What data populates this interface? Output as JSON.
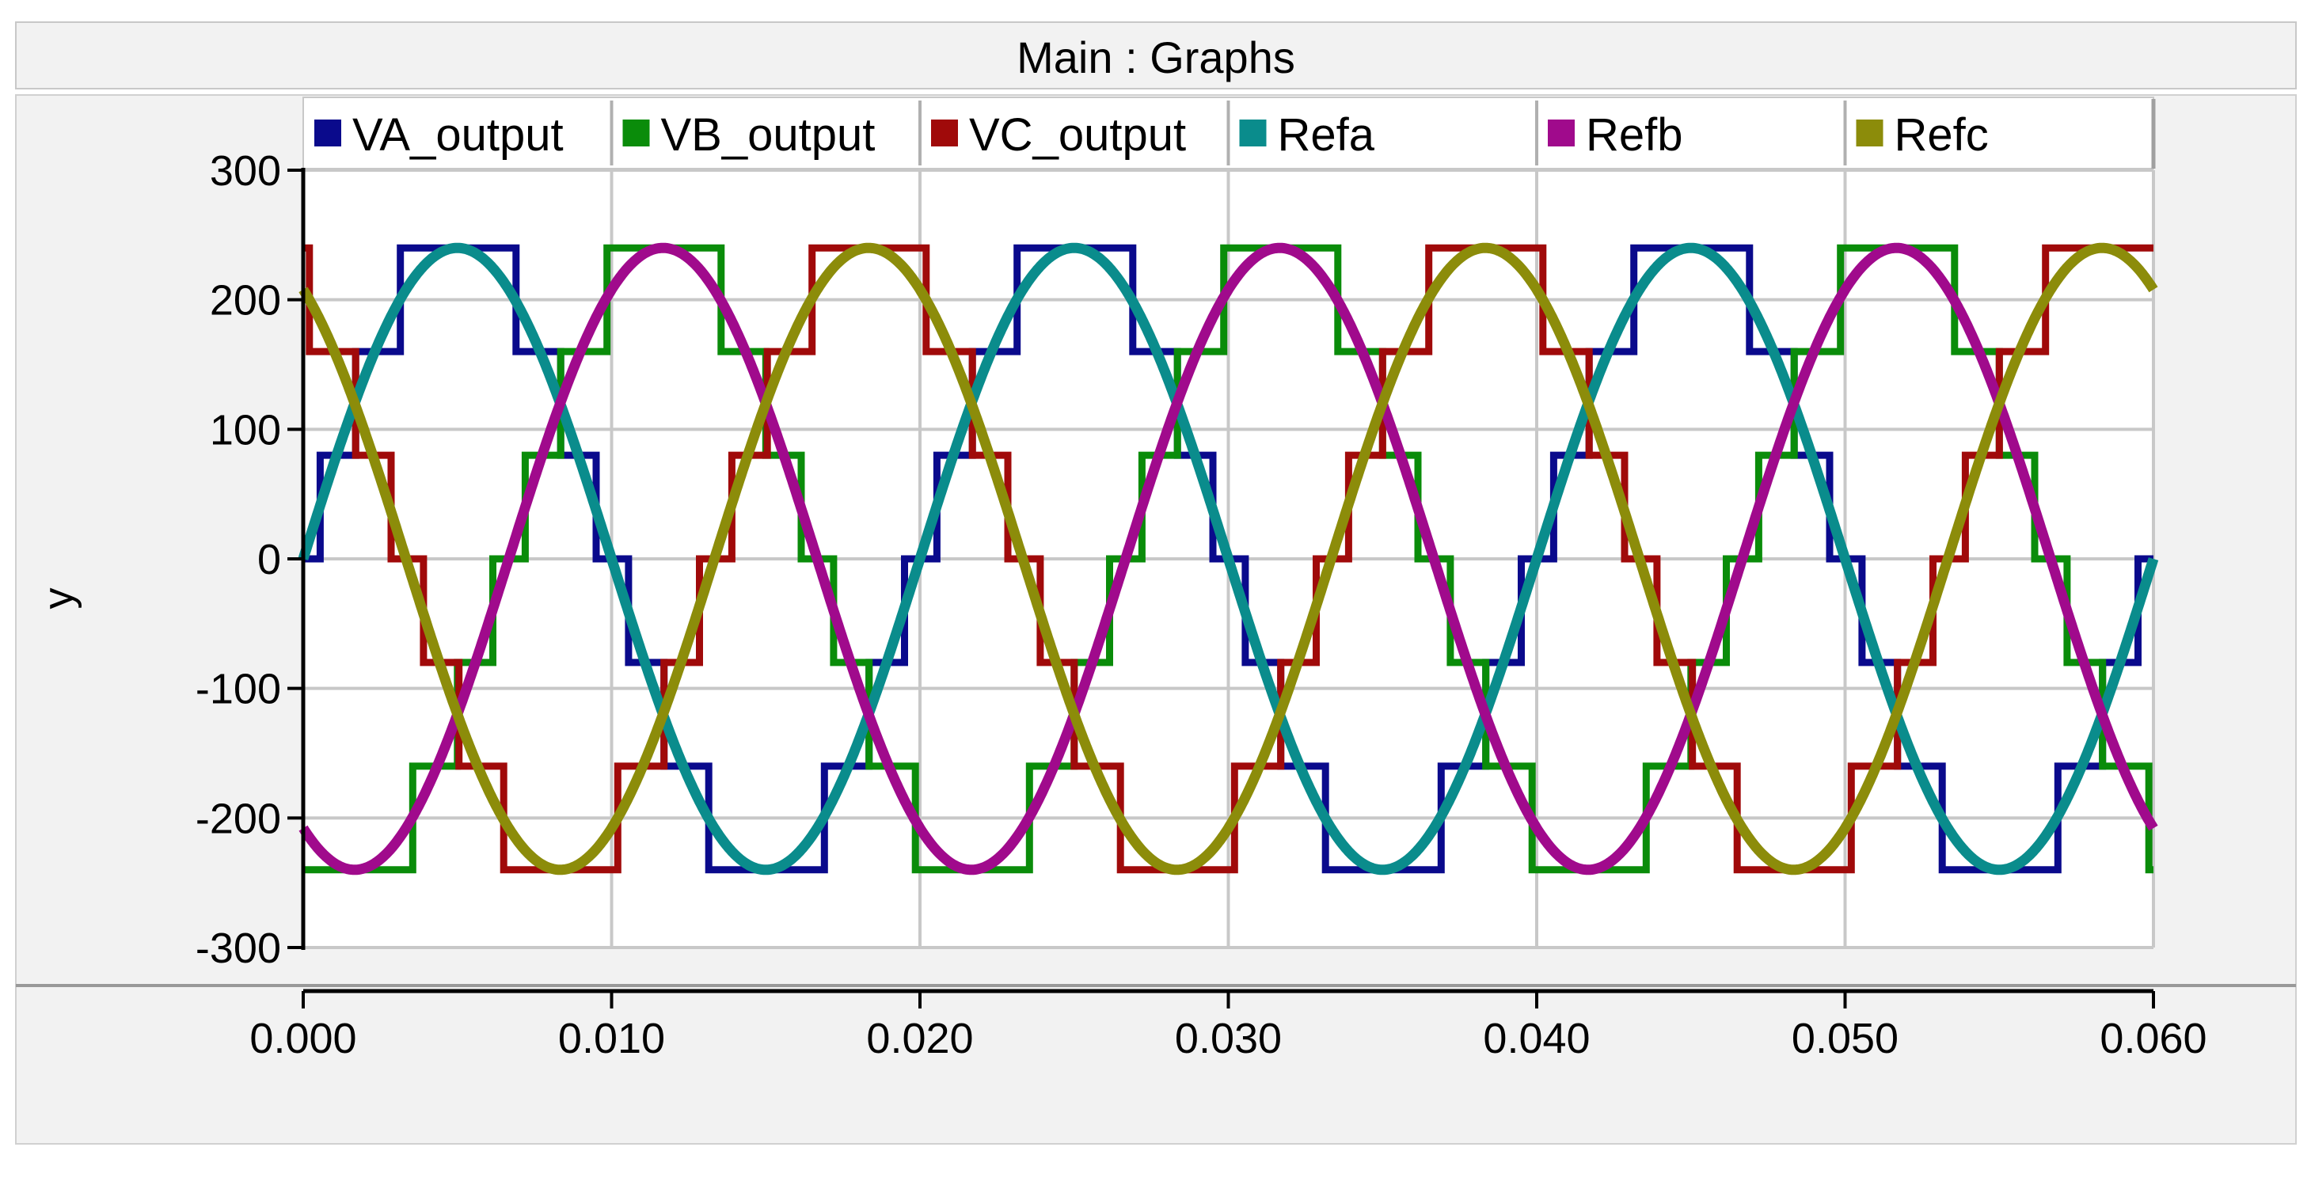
{
  "window": {
    "title": "Main : Graphs"
  },
  "chart_data": {
    "type": "line",
    "title": "Main : Graphs",
    "xlabel": "",
    "ylabel": "y",
    "xlim": [
      0,
      0.06
    ],
    "ylim": [
      -300,
      300
    ],
    "xticks": [
      "0.000",
      "0.010",
      "0.020",
      "0.030",
      "0.040",
      "0.050",
      "0.060"
    ],
    "xtick_values": [
      0,
      0.01,
      0.02,
      0.03,
      0.04,
      0.05,
      0.06
    ],
    "yticks": [
      "300",
      "200",
      "100",
      "0",
      "-100",
      "-200",
      "-300"
    ],
    "ytick_values": [
      300,
      200,
      100,
      0,
      -100,
      -200,
      -300
    ],
    "grid": true,
    "legend_position": "top",
    "series": [
      {
        "name": "VA_output",
        "color": "#0a0a8c",
        "kind": "step",
        "amplitude": 240,
        "frequency_hz": 50,
        "phase_deg": 0
      },
      {
        "name": "VB_output",
        "color": "#0a8c0a",
        "kind": "step",
        "amplitude": 240,
        "frequency_hz": 50,
        "phase_deg": -120
      },
      {
        "name": "VC_output",
        "color": "#a00a0a",
        "kind": "step",
        "amplitude": 240,
        "frequency_hz": 50,
        "phase_deg": 120
      },
      {
        "name": "Refa",
        "color": "#0a8c8c",
        "kind": "sine",
        "amplitude": 240,
        "frequency_hz": 50,
        "phase_deg": 0
      },
      {
        "name": "Refb",
        "color": "#a00a8c",
        "kind": "sine",
        "amplitude": 240,
        "frequency_hz": 50,
        "phase_deg": -120
      },
      {
        "name": "Refc",
        "color": "#8c8c0a",
        "kind": "sine",
        "amplitude": 240,
        "frequency_hz": 50,
        "phase_deg": 120
      }
    ]
  }
}
